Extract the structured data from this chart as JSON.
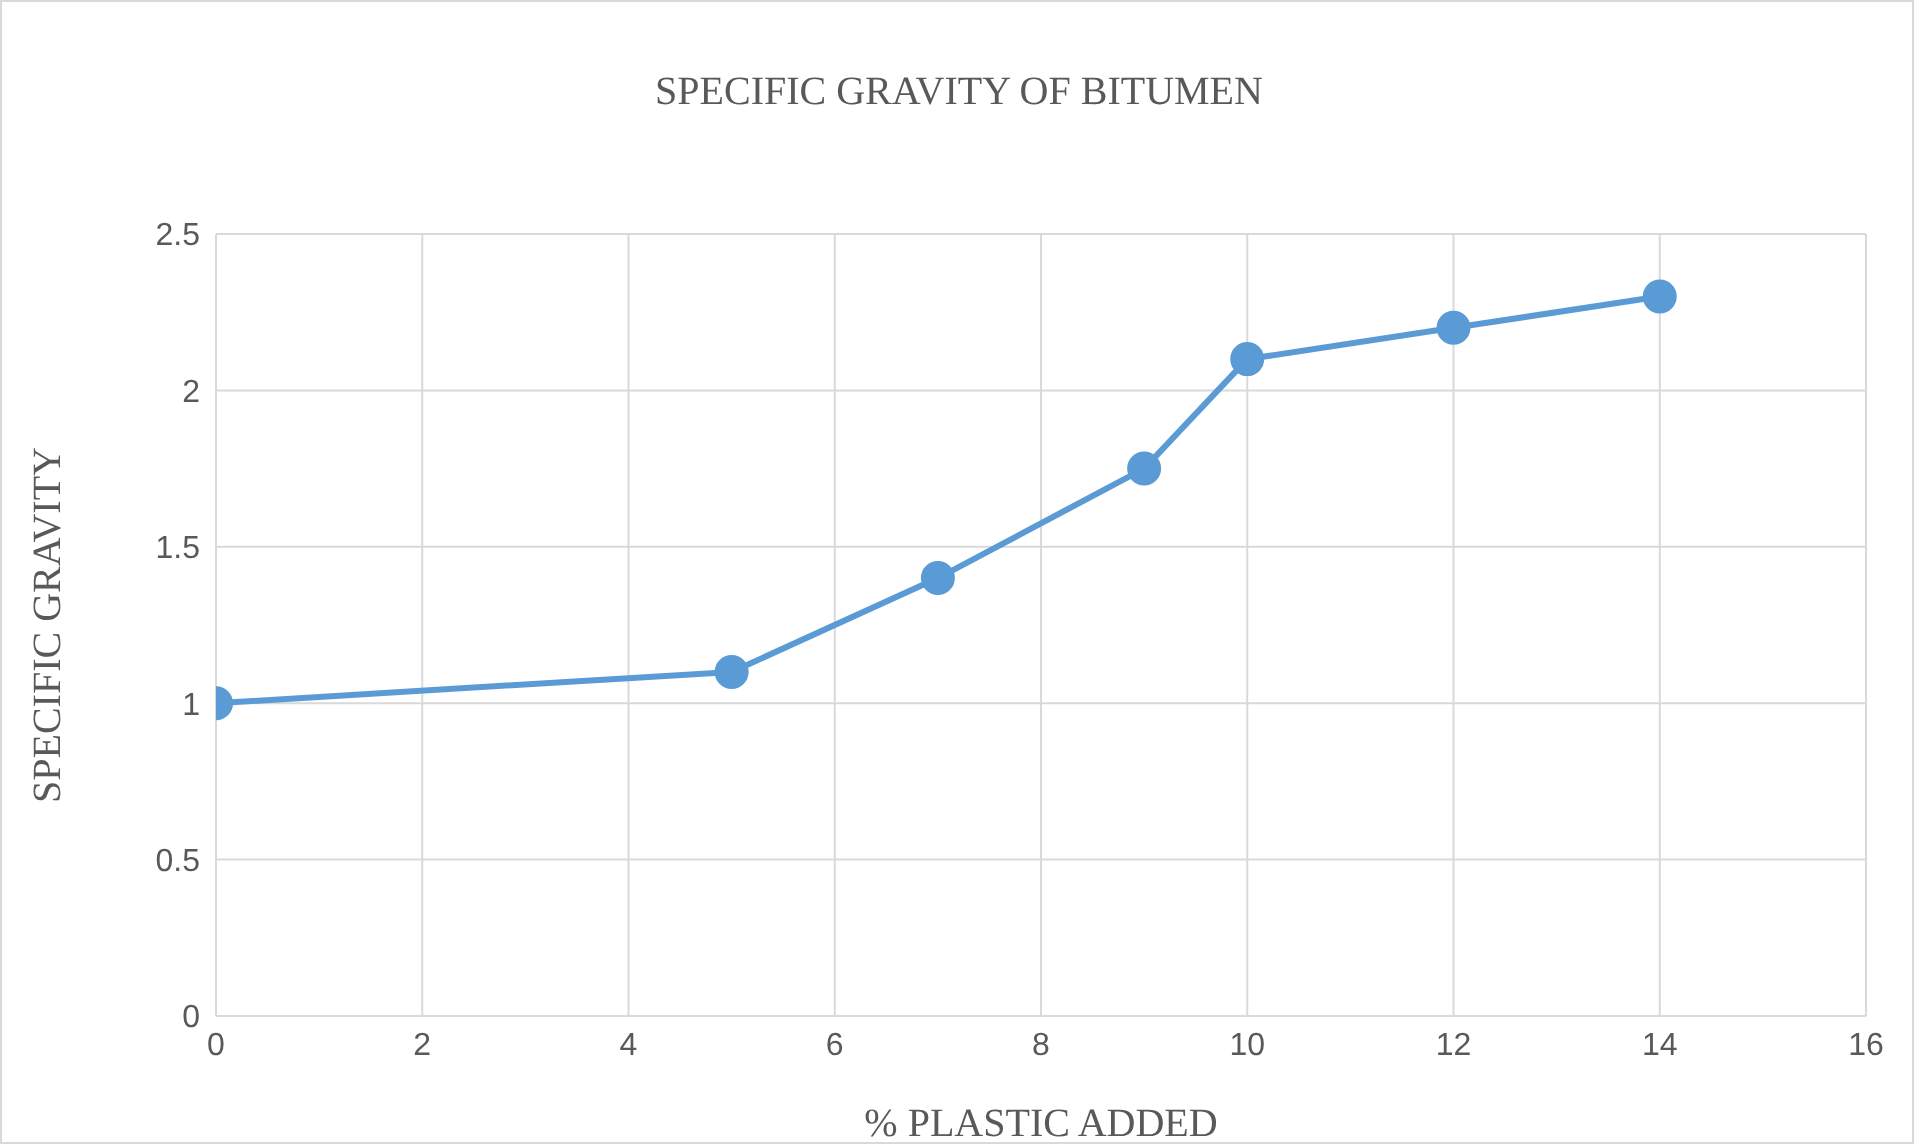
{
  "chart_data": {
    "type": "line",
    "title": "SPECIFIC GRAVITY OF BITUMEN",
    "xlabel": "% PLASTIC ADDED",
    "ylabel": "SPECIFIC GRAVITY",
    "x": [
      0,
      5,
      7,
      9,
      10,
      12,
      14
    ],
    "series": [
      {
        "color": "#5b9bd5",
        "values": [
          1,
          1.1,
          1.4,
          1.75,
          2.1,
          2.2,
          2.3
        ]
      }
    ],
    "xlim": [
      0,
      16
    ],
    "xticks": [
      0,
      2,
      4,
      6,
      8,
      10,
      12,
      14,
      16
    ],
    "ylim": [
      0,
      2.5
    ],
    "yticks": [
      0,
      0.5,
      1,
      1.5,
      2,
      2.5
    ],
    "grid": true,
    "marker": "circle"
  }
}
